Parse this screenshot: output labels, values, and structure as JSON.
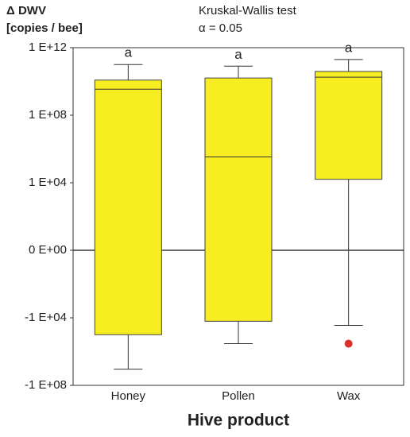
{
  "chart_data": {
    "type": "box",
    "title": "Kruskal-Wallis test",
    "subtitle": "α = 0.05",
    "ylabel": "Δ DWV",
    "ylabel_unit": "[copies / bee]",
    "xlabel": "Hive product",
    "categories": [
      "Honey",
      "Pollen",
      "Wax"
    ],
    "annotations": [
      "a",
      "a",
      "a"
    ],
    "yscale": "symlog",
    "color": "#f7ee22",
    "flier_color": "#d9322b",
    "zero_line": true,
    "boxes": [
      {
        "whislo": -11000000,
        "q1": -100000,
        "med": 3500000000,
        "q3": 12000000000,
        "whishi": 100000000000
      },
      {
        "whislo": -340000,
        "q1": -16000,
        "med": 340000,
        "q3": 16000000000,
        "whishi": 80000000000
      },
      {
        "whislo": -28000,
        "q1": 16000,
        "med": 18000000000,
        "q3": 39000000000,
        "whishi": 200000000000,
        "fliers": [
          -340000
        ]
      }
    ],
    "ylim": [
      -100000000,
      1000000000000
    ],
    "yticks": [
      {
        "value": 1000000000000,
        "label": "1 E+12"
      },
      {
        "value": 100000000,
        "label": "1 E+08"
      },
      {
        "value": 10000,
        "label": "1 E+04"
      },
      {
        "value": 0,
        "label": "0 E+00"
      },
      {
        "value": -10000,
        "label": "-1 E+04"
      },
      {
        "value": -100000000,
        "label": "-1 E+08"
      }
    ]
  }
}
